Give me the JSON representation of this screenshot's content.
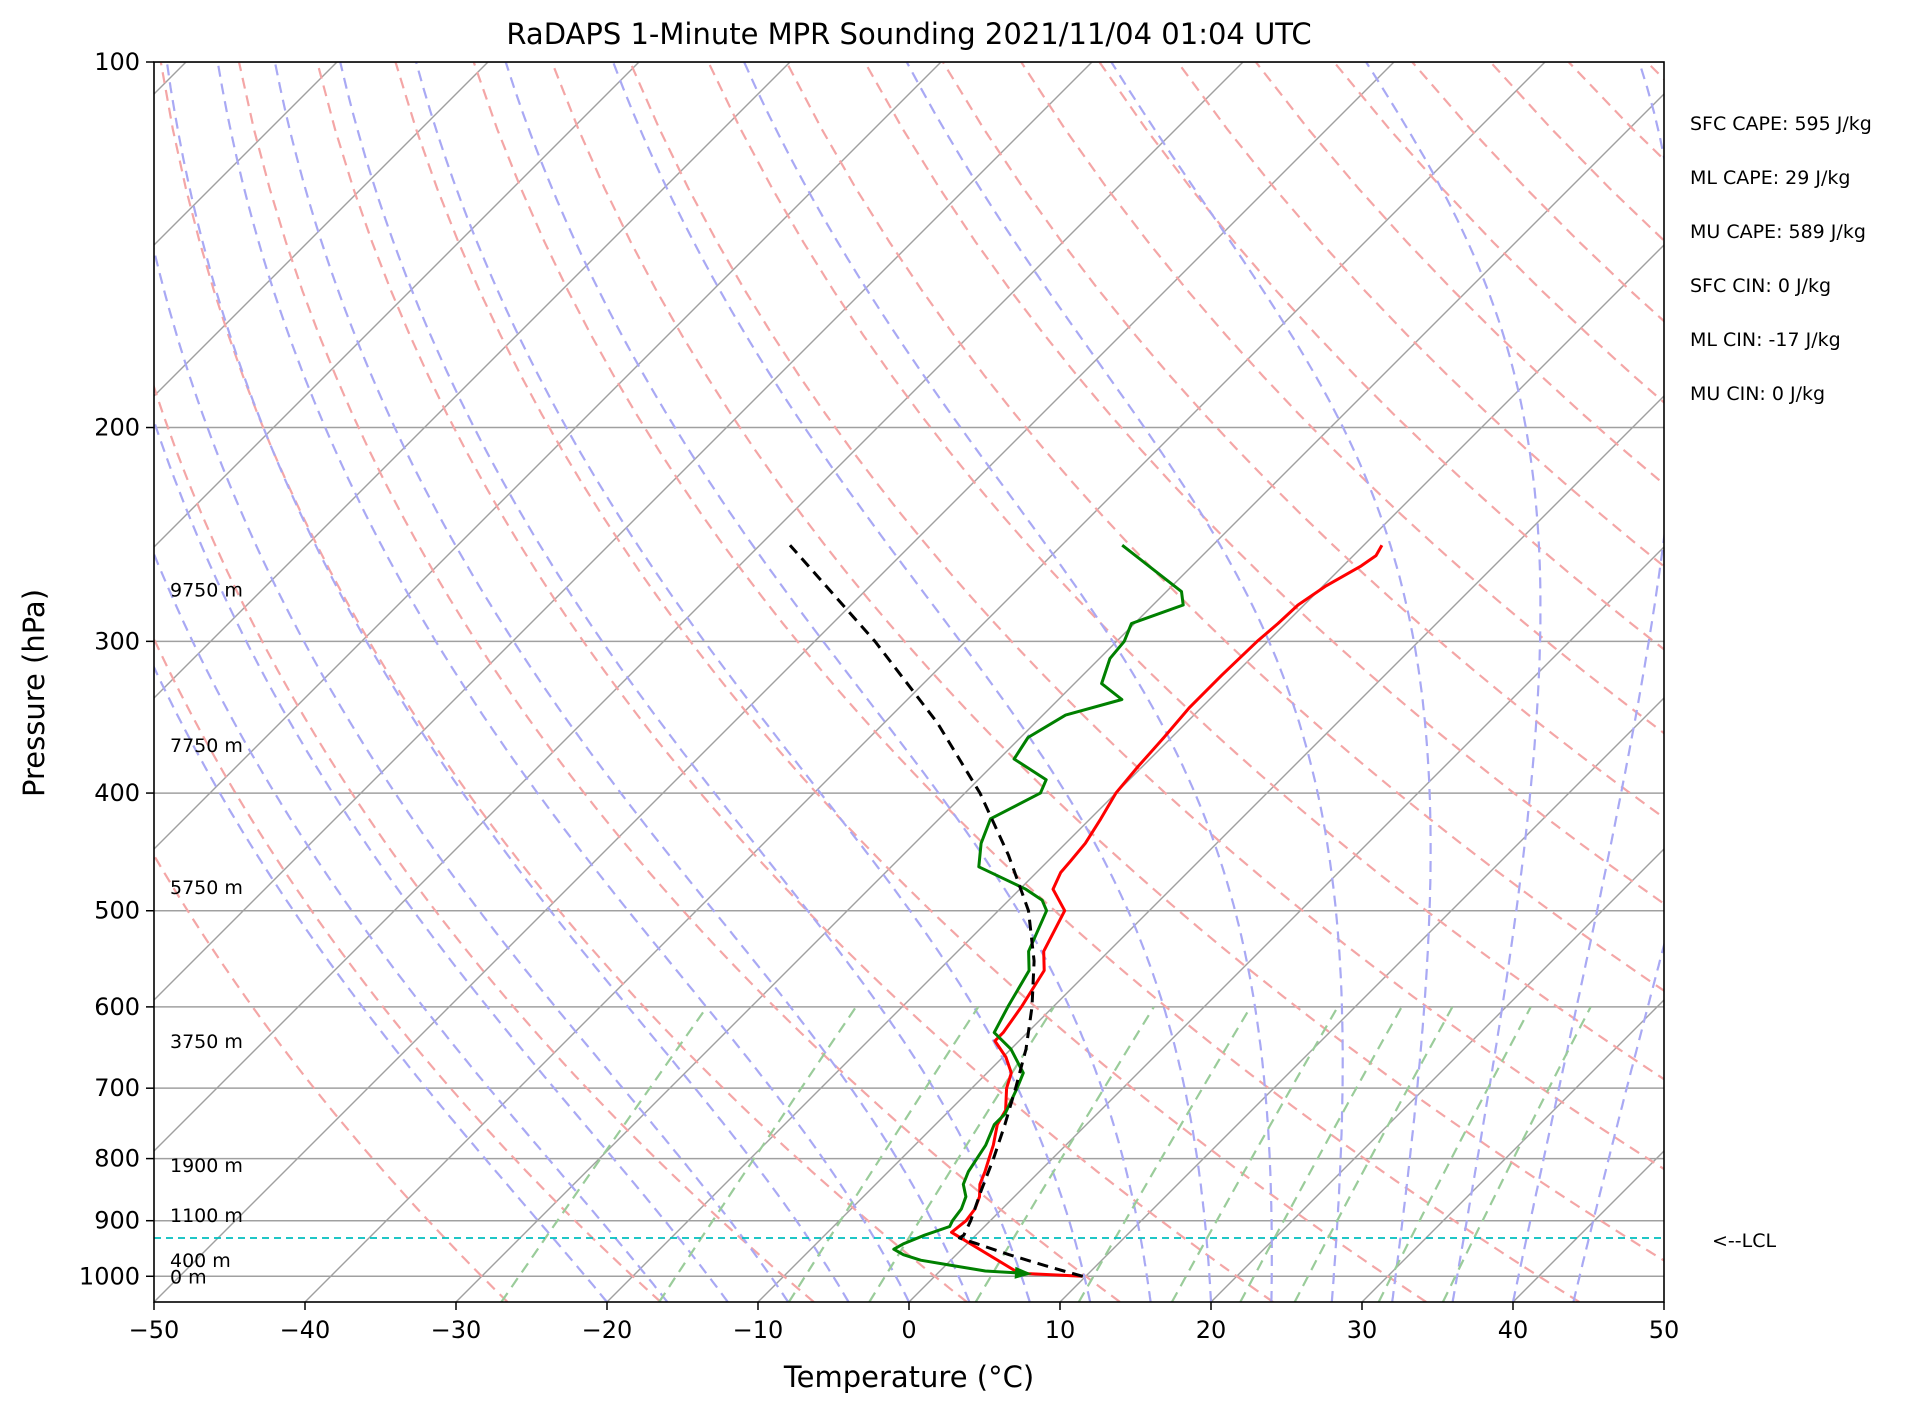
{
  "chart_data": {
    "type": "line",
    "title": "RaDAPS 1-Minute MPR Sounding 2021/11/04 01:04 UTC",
    "xlabel": "Temperature (°C)",
    "ylabel": "Pressure (hPa)",
    "xlim": [
      -50,
      50
    ],
    "ylim": [
      1050,
      100
    ],
    "y_scale": "log",
    "skew_t": true,
    "x_ticks": [
      -50,
      -40,
      -30,
      -20,
      -10,
      0,
      10,
      20,
      30,
      40,
      50
    ],
    "x_tick_labels": [
      "−50",
      "−40",
      "−30",
      "−20",
      "−10",
      "0",
      "10",
      "20",
      "30",
      "40",
      "50"
    ],
    "y_ticks": [
      100,
      200,
      300,
      400,
      500,
      600,
      700,
      800,
      900,
      1000
    ],
    "y_tick_labels": [
      "100",
      "200",
      "300",
      "400",
      "500",
      "600",
      "700",
      "800",
      "900",
      "1000"
    ],
    "grid": true,
    "series": [
      {
        "kind": "temperature",
        "color": "#ff0000",
        "points": [
          [
            1000,
            9.8
          ],
          [
            995,
            6.0
          ],
          [
            990,
            5.0
          ],
          [
            920,
            -1.8
          ],
          [
            900,
            -1.6
          ],
          [
            880,
            -1.8
          ],
          [
            860,
            -2.3
          ],
          [
            840,
            -3.1
          ],
          [
            820,
            -3.6
          ],
          [
            800,
            -4.2
          ],
          [
            780,
            -4.8
          ],
          [
            750,
            -5.9
          ],
          [
            730,
            -6.3
          ],
          [
            700,
            -7.7
          ],
          [
            680,
            -8.4
          ],
          [
            660,
            -9.8
          ],
          [
            640,
            -11.6
          ],
          [
            630,
            -11.6
          ],
          [
            600,
            -12.1
          ],
          [
            560,
            -13.0
          ],
          [
            540,
            -14.3
          ],
          [
            500,
            -15.6
          ],
          [
            480,
            -17.8
          ],
          [
            465,
            -18.4
          ],
          [
            455,
            -18.5
          ],
          [
            440,
            -18.7
          ],
          [
            420,
            -19.3
          ],
          [
            400,
            -20.0
          ],
          [
            380,
            -20.3
          ],
          [
            360,
            -20.5
          ],
          [
            340,
            -20.8
          ],
          [
            320,
            -20.8
          ],
          [
            300,
            -20.7
          ],
          [
            290,
            -20.5
          ],
          [
            280,
            -20.4
          ],
          [
            270,
            -19.8
          ],
          [
            260,
            -18.8
          ],
          [
            255,
            -18.5
          ],
          [
            250,
            -18.8
          ]
        ]
      },
      {
        "kind": "dewpoint",
        "color": "#008000",
        "points": [
          [
            995,
            6.0
          ],
          [
            990,
            3.0
          ],
          [
            980,
            0.5
          ],
          [
            970,
            -2.0
          ],
          [
            960,
            -3.5
          ],
          [
            950,
            -4.5
          ],
          [
            940,
            -4.2
          ],
          [
            925,
            -3.4
          ],
          [
            910,
            -2.3
          ],
          [
            900,
            -2.5
          ],
          [
            880,
            -2.7
          ],
          [
            860,
            -3.2
          ],
          [
            840,
            -4.2
          ],
          [
            820,
            -4.7
          ],
          [
            800,
            -5.0
          ],
          [
            780,
            -5.3
          ],
          [
            750,
            -6.1
          ],
          [
            735,
            -6.1
          ],
          [
            700,
            -7.0
          ],
          [
            680,
            -7.6
          ],
          [
            650,
            -10.0
          ],
          [
            630,
            -12.2
          ],
          [
            600,
            -13.0
          ],
          [
            560,
            -14.0
          ],
          [
            540,
            -15.3
          ],
          [
            500,
            -16.8
          ],
          [
            490,
            -17.8
          ],
          [
            480,
            -19.6
          ],
          [
            460,
            -24.2
          ],
          [
            440,
            -25.6
          ],
          [
            420,
            -26.6
          ],
          [
            400,
            -25.0
          ],
          [
            390,
            -25.5
          ],
          [
            375,
            -29.0
          ],
          [
            360,
            -29.5
          ],
          [
            345,
            -28.5
          ],
          [
            335,
            -25.8
          ],
          [
            325,
            -28.2
          ],
          [
            310,
            -29.3
          ],
          [
            300,
            -29.5
          ],
          [
            290,
            -30.2
          ],
          [
            280,
            -28.0
          ],
          [
            273,
            -29.0
          ],
          [
            250,
            -36.0
          ]
        ]
      },
      {
        "kind": "parcel",
        "color": "#000000",
        "points": [
          [
            1000,
            9.8
          ],
          [
            990,
            8.2
          ],
          [
            980,
            6.6
          ],
          [
            960,
            3.5
          ],
          [
            940,
            0.6
          ],
          [
            930,
            -0.9
          ],
          [
            925,
            -0.8
          ],
          [
            900,
            -1.3
          ],
          [
            850,
            -2.6
          ],
          [
            800,
            -3.9
          ],
          [
            750,
            -5.4
          ],
          [
            700,
            -7.1
          ],
          [
            650,
            -9.0
          ],
          [
            600,
            -11.4
          ],
          [
            550,
            -14.3
          ],
          [
            500,
            -18.0
          ],
          [
            450,
            -23.0
          ],
          [
            400,
            -29.0
          ],
          [
            350,
            -36.5
          ],
          [
            300,
            -46.0
          ],
          [
            250,
            -58.0
          ]
        ]
      }
    ],
    "height_labels": [
      {
        "p": 1000,
        "text": "0 m"
      },
      {
        "p": 970,
        "text": "400 m"
      },
      {
        "p": 890,
        "text": "1100 m"
      },
      {
        "p": 810,
        "text": "1900 m"
      },
      {
        "p": 640,
        "text": "3750 m"
      },
      {
        "p": 478,
        "text": "5750 m"
      },
      {
        "p": 365,
        "text": "7750 m"
      },
      {
        "p": 272,
        "text": "9750 m"
      }
    ],
    "lcl": {
      "pressure": 930,
      "label": "<--LCL"
    },
    "indices": [
      "SFC CAPE: 595 J/kg",
      "ML CAPE: 29 J/kg",
      "MU CAPE: 589 J/kg",
      "SFC CIN: 0 J/kg",
      "ML CIN: -17 J/kg",
      "MU CIN: 0 J/kg"
    ],
    "colors": {
      "isotherm": "#a0a0a0",
      "isobar": "#a0a0a0",
      "dry_adiabat": "#f4a6a6",
      "moist_adiabat": "#a9a9f4",
      "mixing_ratio": "#9acc9a",
      "lcl_line": "#00bfbf"
    }
  }
}
